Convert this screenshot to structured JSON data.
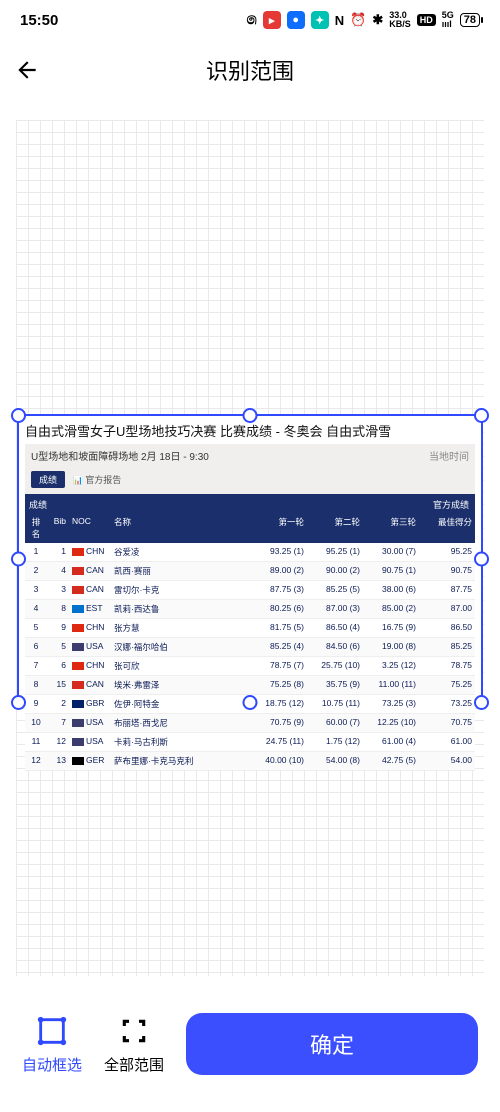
{
  "status": {
    "time": "15:50",
    "net_rate": "33.0",
    "net_unit": "KB/S",
    "sig": "5G",
    "batt": "78"
  },
  "header": {
    "title": "识别范围"
  },
  "embed": {
    "title": "自由式滑雪女子U型场地技巧决赛 比赛成绩 - 冬奥会 自由式滑雪",
    "subtitle": "U型场地和坡面障碍场地 2月 18日 - 9:30",
    "subtitle_right": "当地时间",
    "tab_results": "成绩",
    "tab_report": "官方报告",
    "thead_results": "成绩",
    "thead_official": "官方成绩",
    "cols": {
      "rank": "排名",
      "bib": "Bib",
      "noc": "NOC",
      "name": "名称",
      "r1": "第一轮",
      "r2": "第二轮",
      "r3": "第三轮",
      "best": "最佳得分"
    },
    "rows": [
      {
        "rank": "1",
        "bib": "1",
        "noc": "CHN",
        "flag": "#de2910",
        "name": "谷爱凌",
        "r1": "93.25 (1)",
        "r2": "95.25 (1)",
        "r3": "30.00 (7)",
        "best": "95.25"
      },
      {
        "rank": "2",
        "bib": "4",
        "noc": "CAN",
        "flag": "#d52b1e",
        "name": "凯西·赛丽",
        "r1": "89.00 (2)",
        "r2": "90.00 (2)",
        "r3": "90.75 (1)",
        "best": "90.75"
      },
      {
        "rank": "3",
        "bib": "3",
        "noc": "CAN",
        "flag": "#d52b1e",
        "name": "雷切尔·卡克",
        "r1": "87.75 (3)",
        "r2": "85.25 (5)",
        "r3": "38.00 (6)",
        "best": "87.75"
      },
      {
        "rank": "4",
        "bib": "8",
        "noc": "EST",
        "flag": "#0072ce",
        "name": "凯莉·西达鲁",
        "r1": "80.25 (6)",
        "r2": "87.00 (3)",
        "r3": "85.00 (2)",
        "best": "87.00"
      },
      {
        "rank": "5",
        "bib": "9",
        "noc": "CHN",
        "flag": "#de2910",
        "name": "张方慧",
        "r1": "81.75 (5)",
        "r2": "86.50 (4)",
        "r3": "16.75 (9)",
        "best": "86.50"
      },
      {
        "rank": "6",
        "bib": "5",
        "noc": "USA",
        "flag": "#3c3b6e",
        "name": "汉娜·福尔哈伯",
        "r1": "85.25 (4)",
        "r2": "84.50 (6)",
        "r3": "19.00 (8)",
        "best": "85.25"
      },
      {
        "rank": "7",
        "bib": "6",
        "noc": "CHN",
        "flag": "#de2910",
        "name": "张可欣",
        "r1": "78.75 (7)",
        "r2": "25.75 (10)",
        "r3": "3.25 (12)",
        "best": "78.75"
      },
      {
        "rank": "8",
        "bib": "15",
        "noc": "CAN",
        "flag": "#d52b1e",
        "name": "埃米·弗雷泽",
        "r1": "75.25 (8)",
        "r2": "35.75 (9)",
        "r3": "11.00 (11)",
        "best": "75.25"
      },
      {
        "rank": "9",
        "bib": "2",
        "noc": "GBR",
        "flag": "#012169",
        "name": "佐伊·阿特金",
        "r1": "18.75 (12)",
        "r2": "10.75 (11)",
        "r3": "73.25 (3)",
        "best": "73.25"
      },
      {
        "rank": "10",
        "bib": "7",
        "noc": "USA",
        "flag": "#3c3b6e",
        "name": "布丽塔·西戈尼",
        "r1": "70.75 (9)",
        "r2": "60.00 (7)",
        "r3": "12.25 (10)",
        "best": "70.75"
      },
      {
        "rank": "11",
        "bib": "12",
        "noc": "USA",
        "flag": "#3c3b6e",
        "name": "卡莉·马古利斯",
        "r1": "24.75 (11)",
        "r2": "1.75 (12)",
        "r3": "61.00 (4)",
        "best": "61.00"
      },
      {
        "rank": "12",
        "bib": "13",
        "noc": "GER",
        "flag": "#000000",
        "name": "萨布里娜·卡克马克利",
        "r1": "40.00 (10)",
        "r2": "54.00 (8)",
        "r3": "42.75 (5)",
        "best": "54.00"
      }
    ]
  },
  "bottom": {
    "auto": "自动框选",
    "all": "全部范围",
    "confirm": "确定"
  }
}
